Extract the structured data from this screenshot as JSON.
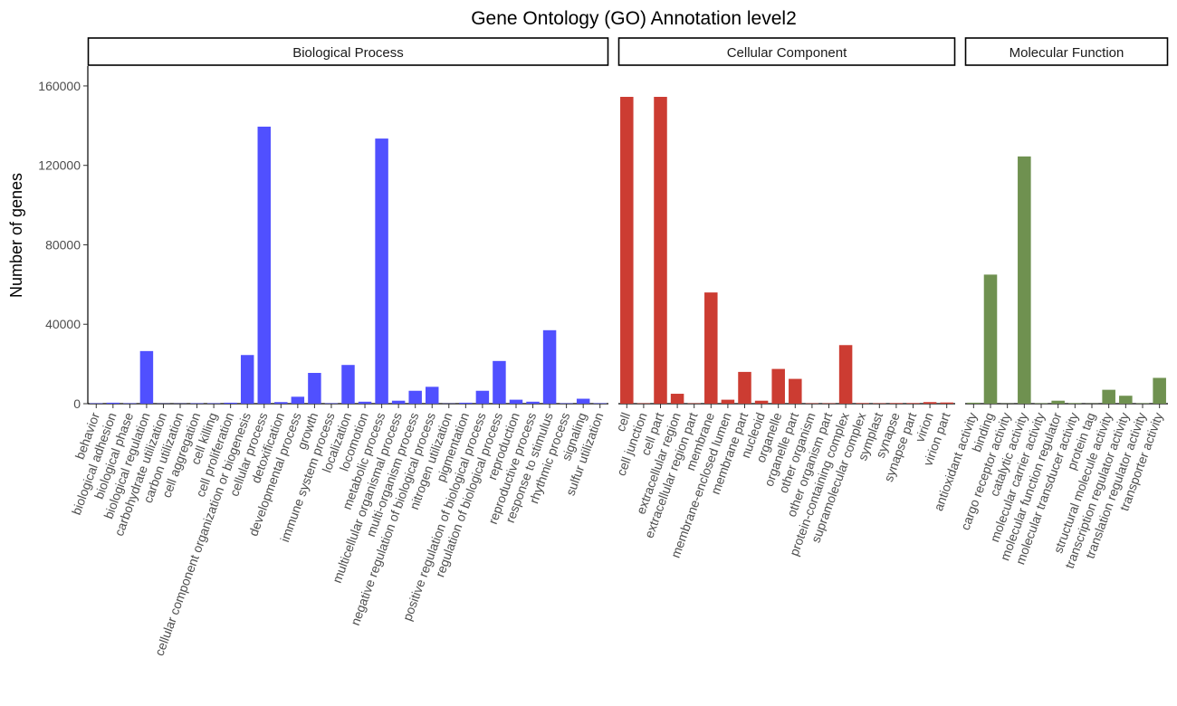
{
  "chart_data": {
    "type": "bar",
    "title": "Gene Ontology (GO) Annotation level2",
    "ylabel": "Number of genes",
    "xlabel": "",
    "ylim": [
      0,
      170000
    ],
    "yticks": [
      0,
      40000,
      80000,
      120000,
      160000
    ],
    "ytick_labels": [
      "0",
      "40000",
      "80000",
      "120000",
      "160000"
    ],
    "grid": false,
    "legend": "none",
    "facets": [
      {
        "name": "Biological Process",
        "color": "#5050ff",
        "categories": [
          "behavior",
          "biological adhesion",
          "biological phase",
          "biological regulation",
          "carbohydrate utilization",
          "carbon utilization",
          "cell aggregation",
          "cell killing",
          "cell proliferation",
          "cellular component organization or biogenesis",
          "cellular process",
          "detoxification",
          "developmental process",
          "growth",
          "immune system process",
          "localization",
          "locomotion",
          "metabolic process",
          "multicellular organismal process",
          "multi-organism process",
          "negative regulation of biological process",
          "nitrogen utilization",
          "pigmentation",
          "positive regulation of biological process",
          "regulation of biological process",
          "reproduction",
          "reproductive process",
          "response to stimulus",
          "rhythmic process",
          "signaling",
          "sulfur utilization"
        ],
        "values": [
          200,
          500,
          200,
          26500,
          100,
          100,
          200,
          200,
          500,
          24500,
          139500,
          800,
          3500,
          15500,
          200,
          19500,
          1000,
          133500,
          1500,
          6500,
          8500,
          100,
          500,
          6500,
          21500,
          2000,
          1000,
          37000,
          200,
          2500,
          200
        ]
      },
      {
        "name": "Cellular Component",
        "color": "#cc3c32",
        "categories": [
          "cell",
          "cell junction",
          "cell part",
          "extracellular region",
          "extracellular region part",
          "membrane",
          "membrane-enclosed lumen",
          "membrane part",
          "nucleoid",
          "organelle",
          "organelle part",
          "other organism",
          "other organism part",
          "protein-containing complex",
          "supramolecular complex",
          "symplast",
          "synapse",
          "synapse part",
          "virion",
          "virion part"
        ],
        "values": [
          154500,
          200,
          154500,
          5000,
          200,
          56000,
          2000,
          16000,
          1500,
          17500,
          12500,
          200,
          200,
          29500,
          300,
          200,
          300,
          300,
          800,
          600
        ]
      },
      {
        "name": "Molecular Function",
        "color": "#6f9150",
        "categories": [
          "antioxidant activity",
          "binding",
          "cargo receptor activity",
          "catalytic activity",
          "molecular carrier activity",
          "molecular function regulator",
          "molecular transducer activity",
          "protein tag",
          "structural molecule activity",
          "transcription regulator activity",
          "translation regulator activity",
          "transporter activity"
        ],
        "values": [
          500,
          65000,
          100,
          124500,
          200,
          1500,
          300,
          100,
          7000,
          4000,
          200,
          13000
        ]
      }
    ]
  }
}
